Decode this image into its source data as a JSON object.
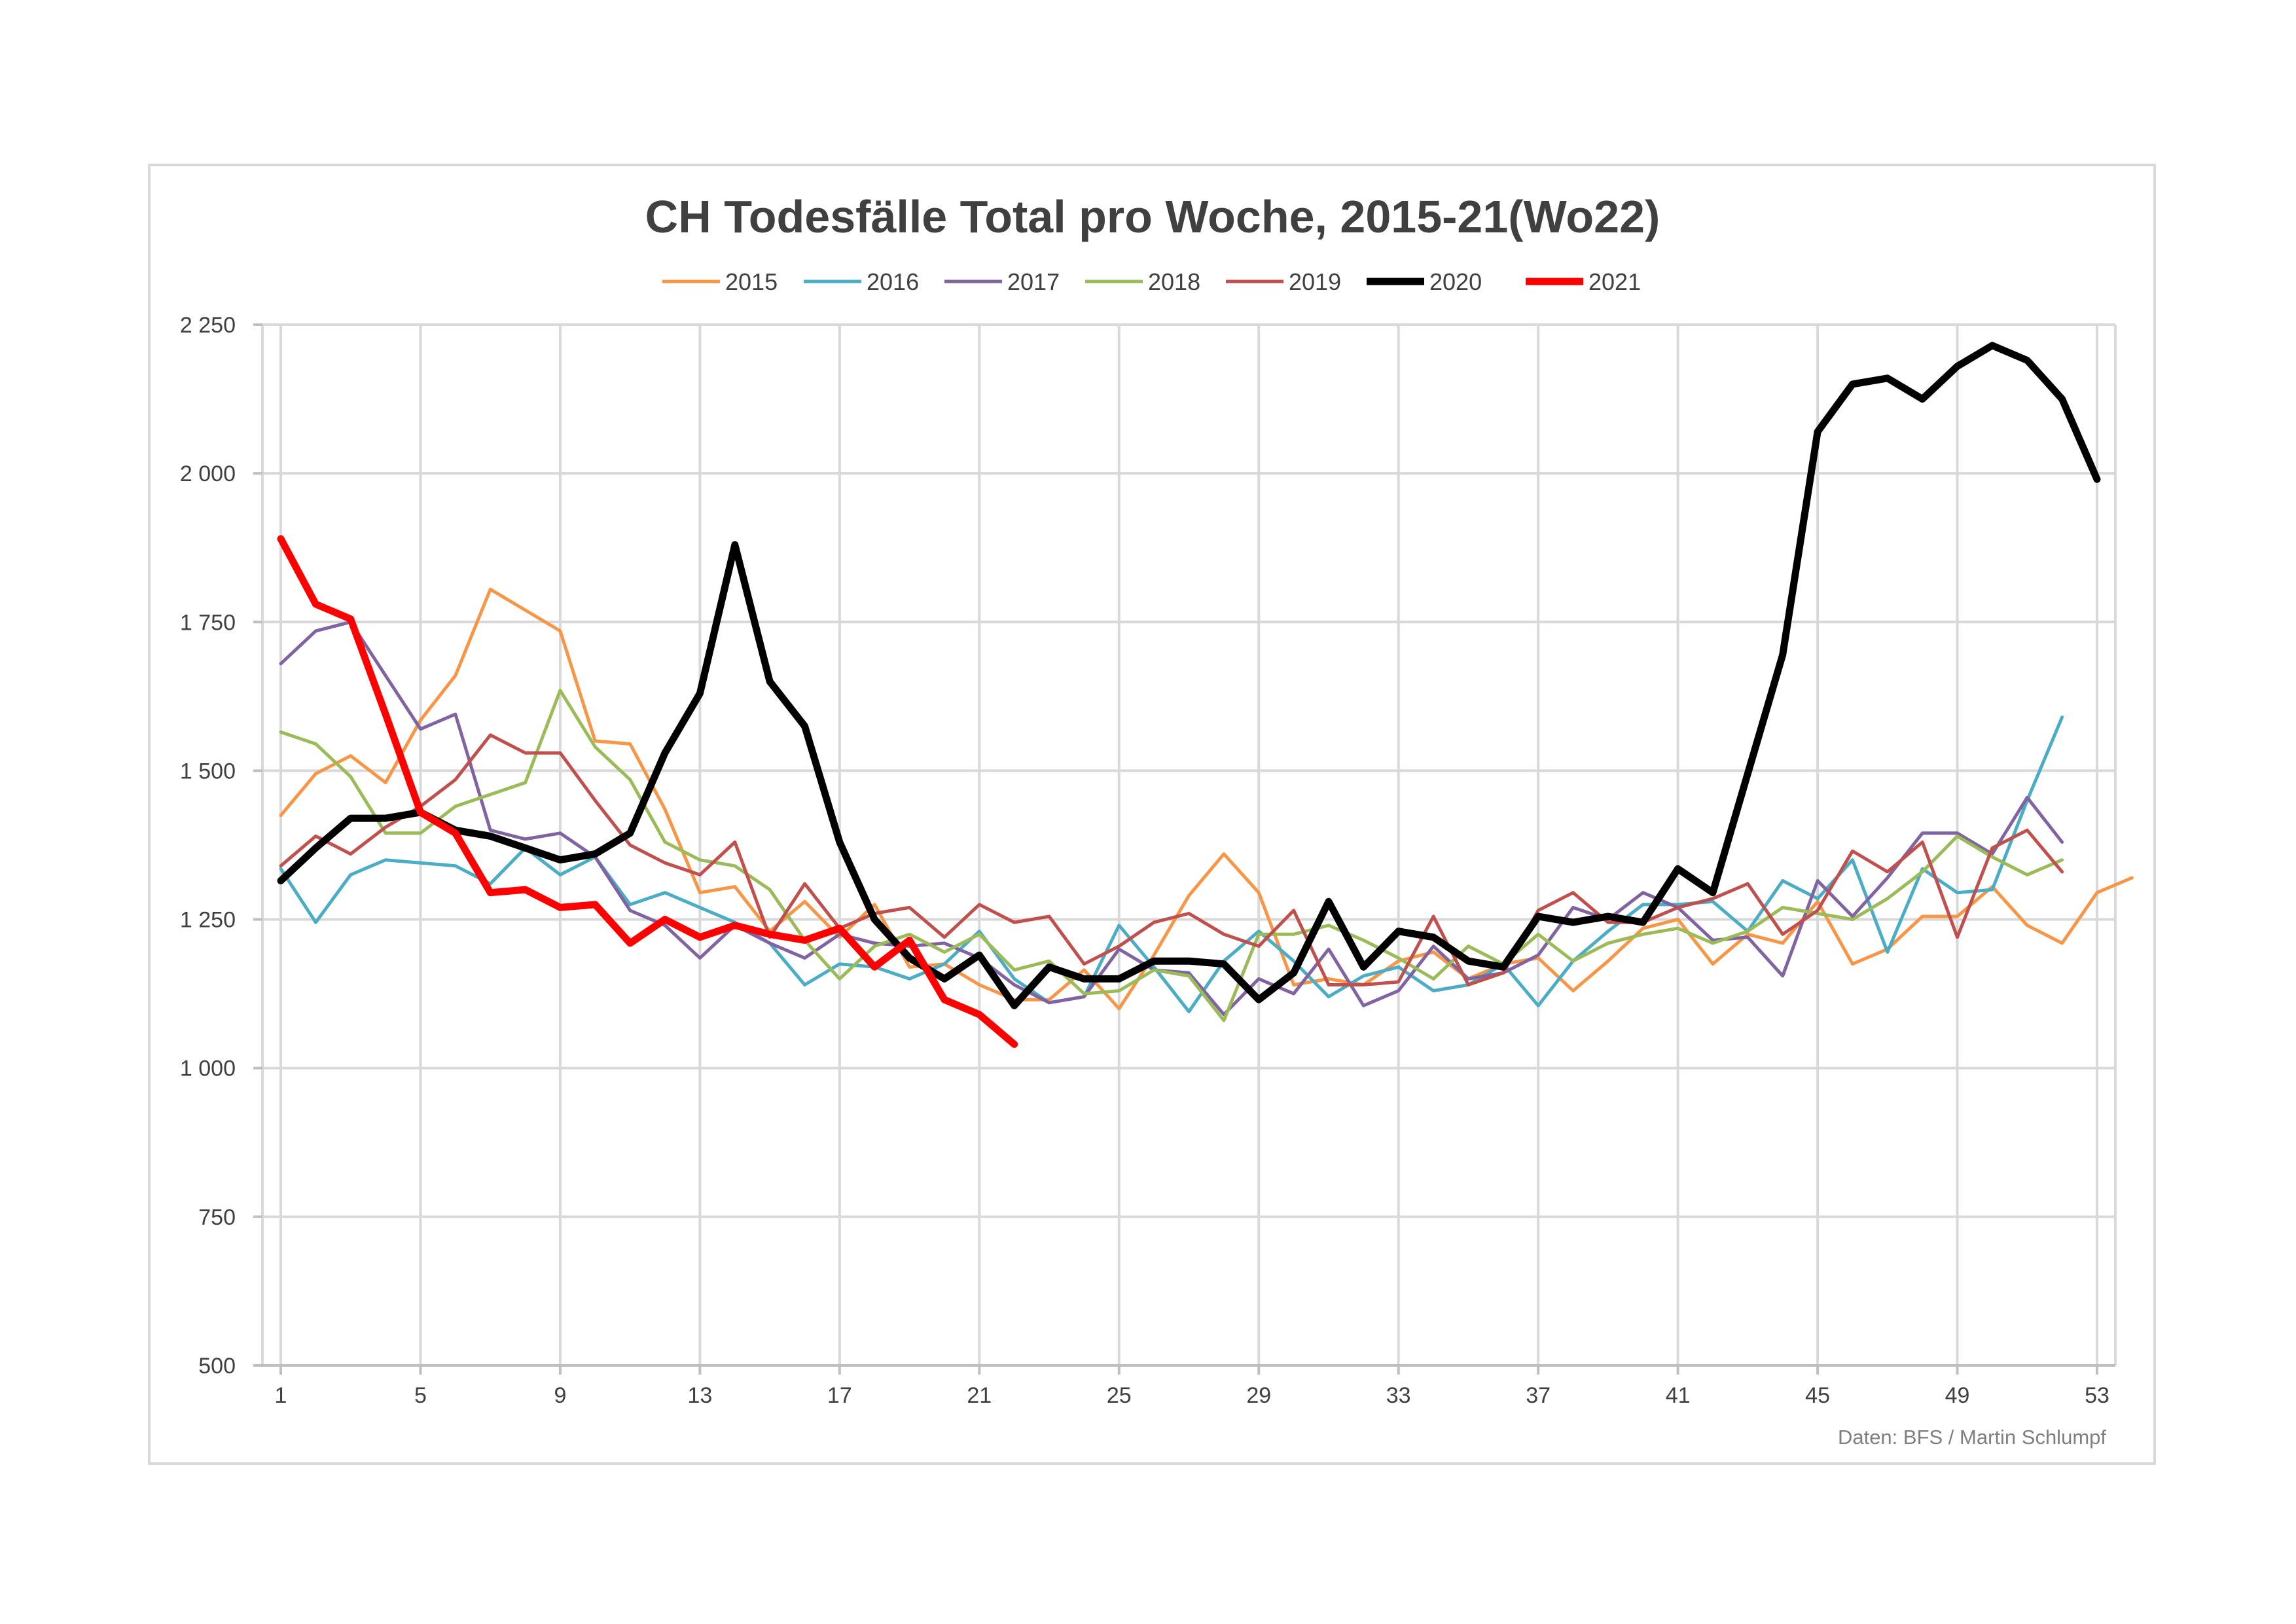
{
  "chart_data": {
    "type": "line",
    "title": "CH Todesfälle Total pro Woche, 2015-21(Wo22)",
    "source": "Daten:  BFS  / Martin Schlumpf",
    "xlabel": "",
    "ylabel": "",
    "xlim": [
      1,
      53
    ],
    "ylim": [
      500,
      2250
    ],
    "y_ticks": [
      500,
      750,
      1000,
      1250,
      1500,
      1750,
      2000,
      2250
    ],
    "y_tick_labels": [
      "500",
      "750",
      "1 000",
      "1 250",
      "1 500",
      "1 750",
      "2 000",
      "2 250"
    ],
    "x_ticks": [
      1,
      5,
      9,
      13,
      17,
      21,
      25,
      29,
      33,
      37,
      41,
      45,
      49,
      53
    ],
    "x_tick_labels": [
      "1",
      "5",
      "9",
      "13",
      "17",
      "21",
      "25",
      "29",
      "33",
      "37",
      "41",
      "45",
      "49",
      "53"
    ],
    "grid": true,
    "legend_position": "top",
    "series": [
      {
        "name": "2015",
        "color": "#f79646",
        "width": 5,
        "values": [
          1425,
          1495,
          1525,
          1480,
          1585,
          1660,
          1805,
          1770,
          1735,
          1550,
          1545,
          1435,
          1295,
          1305,
          1230,
          1280,
          1220,
          1275,
          1170,
          1175,
          1140,
          1115,
          1115,
          1165,
          1100,
          1190,
          1290,
          1360,
          1295,
          1140,
          1150,
          1140,
          1180,
          1195,
          1150,
          1175,
          1185,
          1130,
          1180,
          1235,
          1250,
          1175,
          1225,
          1210,
          1280,
          1175,
          1200,
          1255,
          1255,
          1305,
          1240,
          1210,
          1295,
          1320
        ]
      },
      {
        "name": "2016",
        "color": "#4bacc6",
        "width": 5,
        "values": [
          1335,
          1245,
          1325,
          1350,
          1345,
          1340,
          1310,
          1370,
          1325,
          1355,
          1275,
          1295,
          1270,
          1245,
          1210,
          1140,
          1175,
          1170,
          1150,
          1175,
          1230,
          1150,
          1110,
          1120,
          1240,
          1170,
          1095,
          1180,
          1230,
          1180,
          1120,
          1155,
          1170,
          1130,
          1140,
          1175,
          1105,
          1180,
          1230,
          1275,
          1275,
          1280,
          1230,
          1315,
          1285,
          1350,
          1195,
          1335,
          1295,
          1300,
          1450,
          1590
        ]
      },
      {
        "name": "2017",
        "color": "#8064a2",
        "width": 5,
        "values": [
          1680,
          1735,
          1750,
          1660,
          1570,
          1595,
          1400,
          1385,
          1395,
          1355,
          1265,
          1240,
          1185,
          1240,
          1210,
          1185,
          1225,
          1210,
          1205,
          1210,
          1185,
          1140,
          1110,
          1120,
          1200,
          1165,
          1160,
          1090,
          1150,
          1125,
          1200,
          1105,
          1130,
          1205,
          1150,
          1160,
          1190,
          1270,
          1250,
          1295,
          1270,
          1215,
          1220,
          1155,
          1315,
          1255,
          1320,
          1395,
          1395,
          1360,
          1455,
          1380
        ]
      },
      {
        "name": "2018",
        "color": "#9bbb59",
        "width": 5,
        "values": [
          1565,
          1545,
          1490,
          1395,
          1395,
          1440,
          1460,
          1480,
          1635,
          1540,
          1485,
          1380,
          1350,
          1340,
          1300,
          1215,
          1150,
          1205,
          1225,
          1195,
          1225,
          1165,
          1180,
          1125,
          1130,
          1165,
          1155,
          1080,
          1225,
          1225,
          1240,
          1215,
          1185,
          1150,
          1205,
          1175,
          1225,
          1180,
          1210,
          1225,
          1235,
          1210,
          1230,
          1270,
          1260,
          1250,
          1285,
          1330,
          1390,
          1355,
          1325,
          1350
        ]
      },
      {
        "name": "2019",
        "color": "#c0504d",
        "width": 5,
        "values": [
          1340,
          1390,
          1360,
          1405,
          1440,
          1485,
          1560,
          1530,
          1530,
          1450,
          1375,
          1345,
          1325,
          1380,
          1220,
          1310,
          1235,
          1260,
          1270,
          1220,
          1275,
          1245,
          1255,
          1175,
          1205,
          1245,
          1260,
          1225,
          1205,
          1265,
          1140,
          1140,
          1145,
          1255,
          1140,
          1160,
          1265,
          1295,
          1245,
          1245,
          1270,
          1285,
          1310,
          1225,
          1265,
          1365,
          1330,
          1380,
          1220,
          1370,
          1400,
          1330
        ]
      },
      {
        "name": "2020",
        "color": "#000000",
        "width": 11,
        "values": [
          1315,
          1370,
          1420,
          1420,
          1430,
          1400,
          1390,
          1370,
          1350,
          1360,
          1395,
          1530,
          1630,
          1880,
          1650,
          1575,
          1380,
          1250,
          1185,
          1150,
          1190,
          1105,
          1170,
          1150,
          1150,
          1180,
          1180,
          1175,
          1115,
          1160,
          1280,
          1170,
          1230,
          1220,
          1180,
          1170,
          1255,
          1245,
          1255,
          1245,
          1335,
          1295,
          1495,
          1695,
          2070,
          2150,
          2160,
          2125,
          2180,
          2215,
          2190,
          2125,
          1990
        ]
      },
      {
        "name": "2021",
        "color": "#ff0000",
        "width": 11,
        "values": [
          1890,
          1780,
          1755,
          1595,
          1430,
          1395,
          1295,
          1300,
          1270,
          1275,
          1210,
          1250,
          1220,
          1240,
          1225,
          1215,
          1235,
          1170,
          1215,
          1115,
          1090,
          1040
        ]
      }
    ]
  }
}
